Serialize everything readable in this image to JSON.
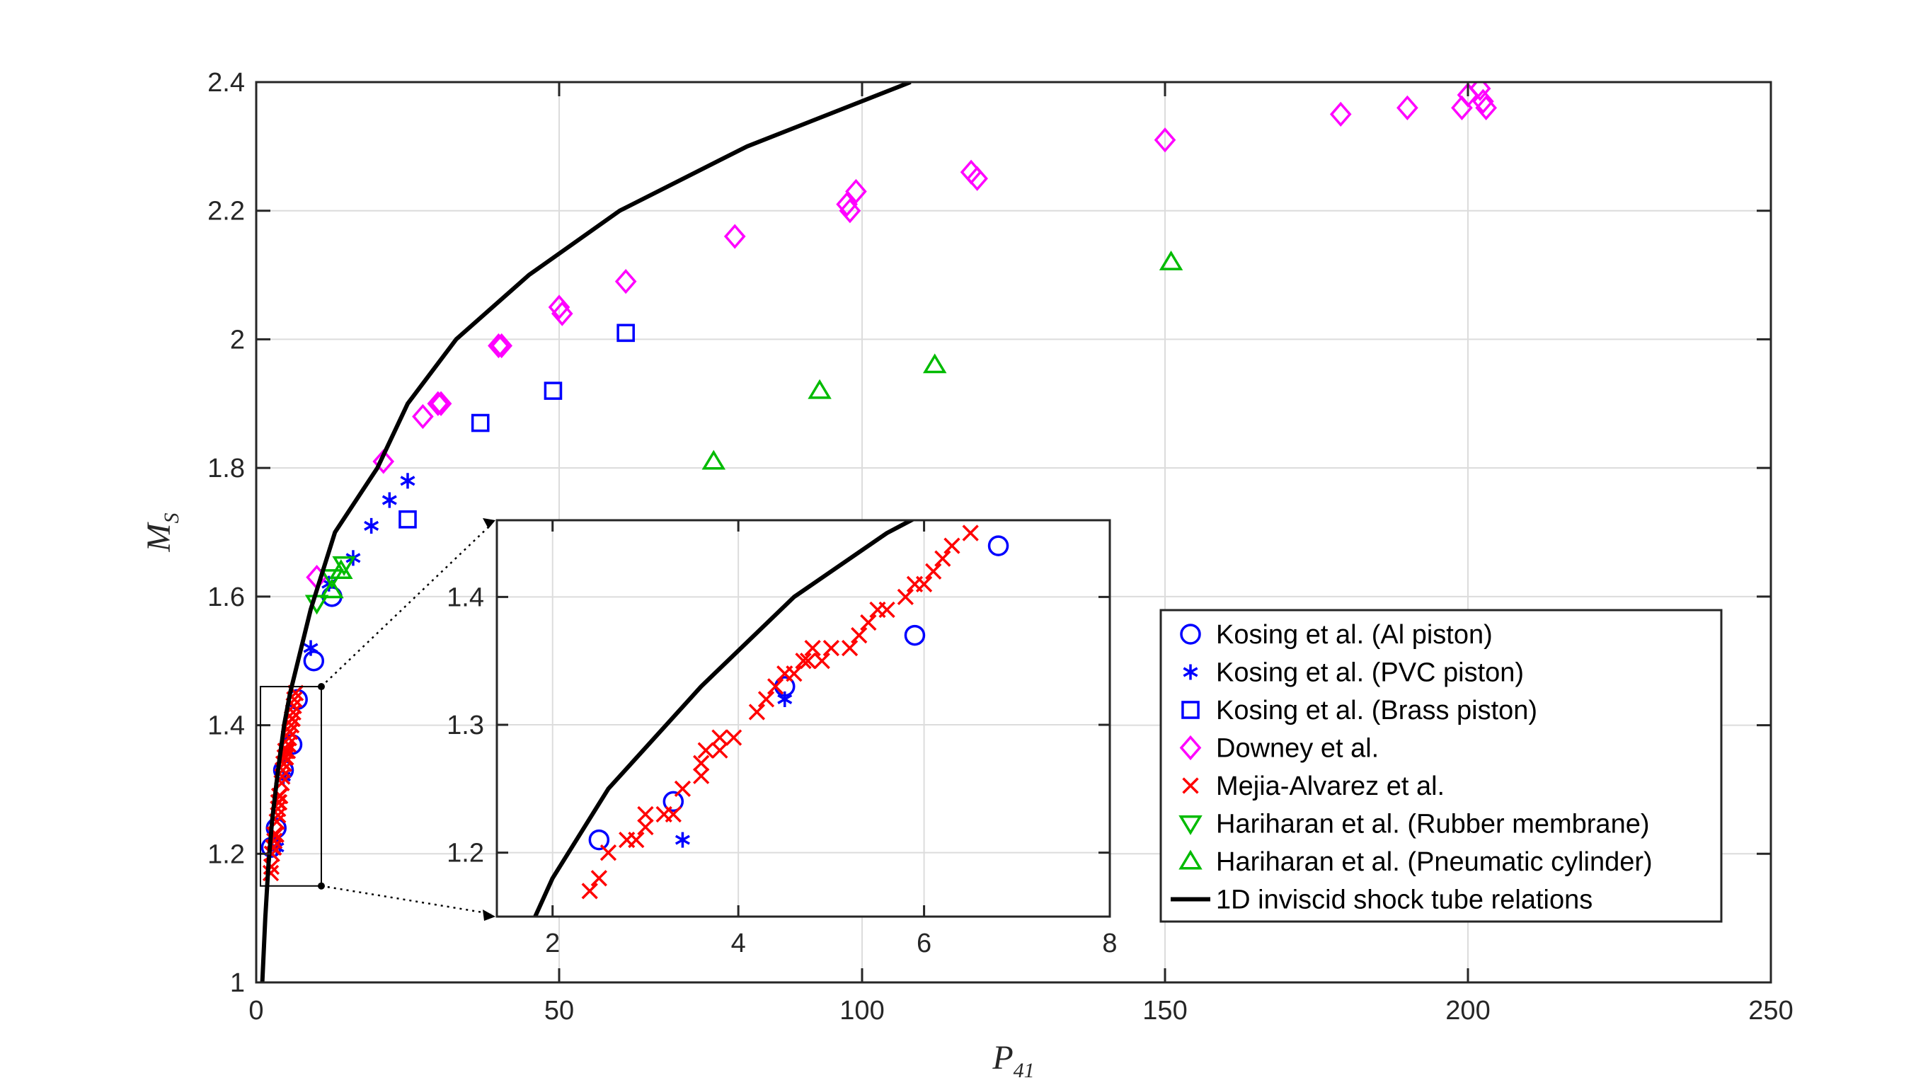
{
  "chart_data": {
    "type": "scatter",
    "xlabel": "P",
    "xlabel_sub": "41",
    "ylabel": "M",
    "ylabel_sub": "S",
    "xlim": [
      0,
      250
    ],
    "ylim": [
      1,
      2.4
    ],
    "xticks": [
      0,
      50,
      100,
      150,
      200,
      250
    ],
    "yticks": [
      1,
      1.2,
      1.4,
      1.6,
      1.8,
      2,
      2.2,
      2.4
    ],
    "xtick_labels": [
      "0",
      "50",
      "100",
      "150",
      "200",
      "250"
    ],
    "ytick_labels": [
      "1",
      "1.2",
      "1.4",
      "1.6",
      "1.8",
      "2",
      "2.2",
      "2.4"
    ],
    "grid": true,
    "legend_position": "lower-right",
    "colors": {
      "blue": "#0000ff",
      "magenta": "#ff00ff",
      "red": "#ff0000",
      "green": "#00bb00",
      "black": "#000000",
      "grid": "#dcdcdc"
    },
    "series": [
      {
        "name": "Kosing et al. (Al piston)",
        "marker": "circle",
        "color": "#0000ff",
        "points": [
          [
            2.5,
            1.21
          ],
          [
            3.3,
            1.24
          ],
          [
            4.5,
            1.33
          ],
          [
            5.9,
            1.37
          ],
          [
            6.8,
            1.44
          ],
          [
            9.5,
            1.5
          ],
          [
            12.5,
            1.6
          ]
        ]
      },
      {
        "name": "Kosing et al. (PVC piston)",
        "marker": "asterisk",
        "color": "#0000ff",
        "points": [
          [
            3.4,
            1.21
          ],
          [
            4.5,
            1.32
          ],
          [
            9,
            1.52
          ],
          [
            12,
            1.62
          ],
          [
            16,
            1.66
          ],
          [
            19,
            1.71
          ],
          [
            22,
            1.75
          ],
          [
            25,
            1.78
          ]
        ]
      },
      {
        "name": "Kosing et al. (Brass piston)",
        "marker": "square",
        "color": "#0000ff",
        "points": [
          [
            25,
            1.72
          ],
          [
            37,
            1.87
          ],
          [
            49,
            1.92
          ],
          [
            61,
            2.01
          ]
        ]
      },
      {
        "name": "Downey et al.",
        "marker": "diamond",
        "color": "#ff00ff",
        "points": [
          [
            10,
            1.63
          ],
          [
            21,
            1.81
          ],
          [
            27.5,
            1.88
          ],
          [
            30,
            1.9
          ],
          [
            30.5,
            1.9
          ],
          [
            40,
            1.99
          ],
          [
            40.5,
            1.99
          ],
          [
            50,
            2.05
          ],
          [
            50.5,
            2.04
          ],
          [
            61,
            2.09
          ],
          [
            79,
            2.16
          ],
          [
            97.5,
            2.21
          ],
          [
            98,
            2.2
          ],
          [
            99,
            2.23
          ],
          [
            118,
            2.26
          ],
          [
            119,
            2.25
          ],
          [
            150,
            2.31
          ],
          [
            179,
            2.35
          ],
          [
            190,
            2.36
          ],
          [
            199,
            2.36
          ],
          [
            200,
            2.38
          ],
          [
            202,
            2.39
          ],
          [
            202.5,
            2.37
          ],
          [
            203,
            2.36
          ]
        ]
      },
      {
        "name": "Mejia-Alvarez et al.",
        "marker": "x",
        "color": "#ff0000",
        "points": [
          [
            2.4,
            1.17
          ],
          [
            2.5,
            1.18
          ],
          [
            2.6,
            1.2
          ],
          [
            2.8,
            1.21
          ],
          [
            2.9,
            1.21
          ],
          [
            3,
            1.22
          ],
          [
            3,
            1.23
          ],
          [
            3.2,
            1.23
          ],
          [
            3.3,
            1.23
          ],
          [
            3.4,
            1.25
          ],
          [
            3.6,
            1.26
          ],
          [
            3.6,
            1.27
          ],
          [
            3.65,
            1.28
          ],
          [
            3.8,
            1.28
          ],
          [
            3.8,
            1.29
          ],
          [
            3.95,
            1.29
          ],
          [
            4.2,
            1.31
          ],
          [
            4.3,
            1.32
          ],
          [
            4.4,
            1.33
          ],
          [
            4.5,
            1.34
          ],
          [
            4.6,
            1.34
          ],
          [
            4.7,
            1.35
          ],
          [
            4.75,
            1.35
          ],
          [
            4.8,
            1.36
          ],
          [
            4.9,
            1.35
          ],
          [
            5.0,
            1.36
          ],
          [
            5.2,
            1.36
          ],
          [
            5.3,
            1.37
          ],
          [
            5.4,
            1.38
          ],
          [
            5.5,
            1.39
          ],
          [
            5.6,
            1.39
          ],
          [
            5.8,
            1.4
          ],
          [
            5.9,
            1.41
          ],
          [
            6.0,
            1.41
          ],
          [
            6.1,
            1.42
          ],
          [
            6.2,
            1.43
          ],
          [
            6.3,
            1.44
          ],
          [
            6.5,
            1.45
          ]
        ]
      },
      {
        "name": "Hariharan et al. (Rubber membrane)",
        "marker": "triangle-down",
        "color": "#00bb00",
        "points": [
          [
            10,
            1.59
          ],
          [
            12.5,
            1.63
          ],
          [
            14.5,
            1.65
          ]
        ]
      },
      {
        "name": "Hariharan et al. (Pneumatic cylinder)",
        "marker": "triangle-up",
        "color": "#00bb00",
        "points": [
          [
            12.5,
            1.61
          ],
          [
            14,
            1.64
          ],
          [
            75.5,
            1.81
          ],
          [
            93,
            1.92
          ],
          [
            112,
            1.96
          ],
          [
            151,
            2.12
          ]
        ]
      },
      {
        "name": "1D inviscid shock tube relations",
        "marker": "line",
        "color": "#000000",
        "points": [
          [
            1,
            1
          ],
          [
            1.5,
            1.1
          ],
          [
            2,
            1.18
          ],
          [
            2.6,
            1.25
          ],
          [
            3.6,
            1.33
          ],
          [
            4.6,
            1.4
          ],
          [
            5.6,
            1.45
          ],
          [
            9,
            1.58
          ],
          [
            13,
            1.7
          ],
          [
            20,
            1.8
          ],
          [
            25,
            1.9
          ],
          [
            33,
            2.0
          ],
          [
            45,
            2.1
          ],
          [
            60,
            2.2
          ],
          [
            81,
            2.3
          ],
          [
            108,
            2.4
          ]
        ]
      }
    ],
    "inset": {
      "xlim": [
        1.4,
        8
      ],
      "ylim": [
        1.15,
        1.46
      ],
      "xticks": [
        2,
        4,
        6,
        8
      ],
      "yticks": [
        1.2,
        1.3,
        1.4
      ],
      "xtick_labels": [
        "2",
        "4",
        "6",
        "8"
      ],
      "ytick_labels": [
        "1.2",
        "1.3",
        "1.4"
      ]
    }
  }
}
